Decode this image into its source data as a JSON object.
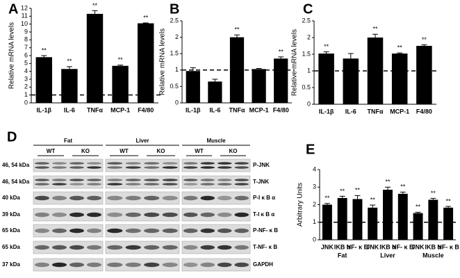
{
  "chart_data": [
    {
      "type": "bar",
      "panel": "A",
      "ylabel": "Relative mRNA levels",
      "categories": [
        "IL-1β",
        "IL-6",
        "TNFα",
        "MCP-1",
        "F4/80"
      ],
      "values": [
        5.8,
        4.3,
        11.3,
        4.7,
        10.1
      ],
      "errors": [
        0.2,
        0.3,
        0.4,
        0.1,
        0.05
      ],
      "annotations": [
        "**",
        "**",
        "**",
        "**",
        "**"
      ],
      "color": "#000000",
      "reference_line": 1,
      "ylim": [
        0,
        12
      ],
      "yticks": [
        0,
        1,
        2,
        3,
        4,
        5,
        6,
        7,
        8,
        9,
        10,
        11,
        12
      ]
    },
    {
      "type": "bar",
      "panel": "B",
      "ylabel": "Relative mRNA levels",
      "categories": [
        "IL-1β",
        "IL-6",
        "TNFα",
        "MCP-1",
        "F4/80"
      ],
      "values": [
        0.97,
        0.65,
        2.0,
        1.03,
        1.35
      ],
      "errors": [
        0.1,
        0.07,
        0.07,
        0.02,
        0.05
      ],
      "annotations": [
        null,
        null,
        "**",
        null,
        "**"
      ],
      "color": "#000000",
      "reference_line": 1,
      "ylim": [
        0,
        2.5
      ],
      "yticks": [
        0,
        0.5,
        1,
        1.5,
        2,
        2.5
      ]
    },
    {
      "type": "bar",
      "panel": "C",
      "ylabel": "Relative mRNA levels",
      "categories": [
        "IL-1β",
        "IL-6",
        "TNFα",
        "MCP-1",
        "F4/80"
      ],
      "values": [
        1.52,
        1.37,
        2.0,
        1.52,
        1.75
      ],
      "errors": [
        0.05,
        0.15,
        0.1,
        0.02,
        0.03
      ],
      "annotations": [
        "**",
        null,
        "**",
        "**",
        "**"
      ],
      "color": "#000000",
      "reference_line": 1,
      "ylim": [
        0,
        2.5
      ],
      "yticks": [
        0,
        0.5,
        1,
        1.5,
        2,
        2.5
      ]
    },
    {
      "type": "bar",
      "panel": "E",
      "ylabel": "Arbitrary Units",
      "categories": [
        "JNK",
        "IKB α",
        "NF- κ B",
        "JNK",
        "IKB α",
        "NF- κ B",
        "JNK",
        "IKB α",
        "NF- κ B"
      ],
      "group_labels": [
        "Fat",
        "Liver",
        "Muscle"
      ],
      "values": [
        2.0,
        2.38,
        2.32,
        1.83,
        2.85,
        2.62,
        1.52,
        2.28,
        1.83
      ],
      "errors": [
        0.07,
        0.1,
        0.2,
        0.15,
        0.15,
        0.1,
        0.05,
        0.08,
        0.07
      ],
      "annotations": [
        "**",
        "**",
        "**",
        "**",
        "**",
        "**",
        "**",
        "**",
        "**"
      ],
      "color": "#000000",
      "reference_line": 1,
      "ylim": [
        0,
        4
      ],
      "yticks": [
        0,
        1,
        2,
        3,
        4
      ]
    }
  ],
  "blot": {
    "panel": "D",
    "groups": [
      "Fat",
      "Liver",
      "Muscle"
    ],
    "genotypes": [
      "WT",
      "KO"
    ],
    "rows": [
      {
        "kda": "46, 54 kDa",
        "protein": "P-JNK"
      },
      {
        "kda": "46, 54 kDa",
        "protein": "T-JNK"
      },
      {
        "kda": "40 kDa",
        "protein": "P-I κ B α"
      },
      {
        "kda": "39 kDa",
        "protein": "T-I κ B α"
      },
      {
        "kda": "65 kDa",
        "protein": "P-NF- κ B"
      },
      {
        "kda": "65 kDa",
        "protein": "T-NF- κ B"
      },
      {
        "kda": "37 kDa",
        "protein": "GAPDH"
      }
    ]
  }
}
